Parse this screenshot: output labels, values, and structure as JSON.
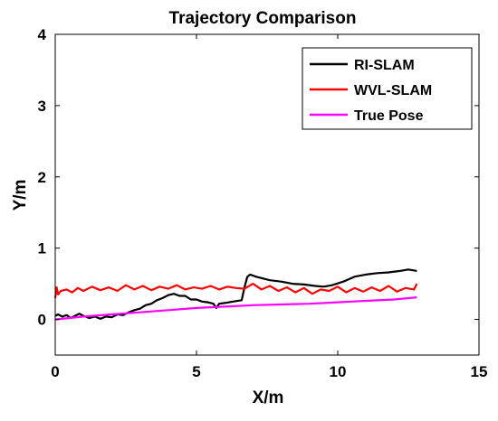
{
  "chart_data": {
    "type": "line",
    "title": "Trajectory Comparison",
    "xlabel": "X/m",
    "ylabel": "Y/m",
    "xlim": [
      0,
      15
    ],
    "ylim": [
      -0.5,
      4
    ],
    "xticks": [
      0,
      5,
      10,
      15
    ],
    "yticks": [
      0,
      1,
      2,
      3,
      4
    ],
    "grid": false,
    "legend_position": "top-right",
    "series": [
      {
        "name": "RI-SLAM",
        "color": "#000000",
        "x": [
          0,
          0.1,
          0.25,
          0.4,
          0.55,
          0.7,
          0.85,
          1.0,
          1.2,
          1.4,
          1.6,
          1.8,
          2.0,
          2.2,
          2.4,
          2.6,
          2.8,
          3.0,
          3.2,
          3.4,
          3.6,
          3.8,
          4.0,
          4.2,
          4.4,
          4.6,
          4.8,
          5.0,
          5.2,
          5.4,
          5.6,
          5.7,
          5.8,
          6.0,
          6.3,
          6.6,
          6.7,
          6.8,
          6.9,
          7.1,
          7.3,
          7.6,
          8.0,
          8.4,
          8.8,
          9.2,
          9.5,
          9.8,
          10.2,
          10.6,
          11.0,
          11.4,
          11.8,
          12.2,
          12.5,
          12.8
        ],
        "y": [
          0.05,
          0.07,
          0.04,
          0.06,
          0.02,
          0.05,
          0.08,
          0.05,
          0.02,
          0.04,
          0.01,
          0.04,
          0.03,
          0.07,
          0.06,
          0.1,
          0.13,
          0.15,
          0.2,
          0.22,
          0.27,
          0.3,
          0.34,
          0.36,
          0.33,
          0.33,
          0.28,
          0.28,
          0.25,
          0.24,
          0.22,
          0.16,
          0.22,
          0.23,
          0.25,
          0.27,
          0.45,
          0.6,
          0.63,
          0.6,
          0.58,
          0.55,
          0.53,
          0.5,
          0.49,
          0.47,
          0.46,
          0.48,
          0.53,
          0.6,
          0.63,
          0.65,
          0.66,
          0.68,
          0.7,
          0.68
        ]
      },
      {
        "name": "WVL-SLAM",
        "color": "#ff0000",
        "x": [
          0,
          0.05,
          0.1,
          0.2,
          0.4,
          0.6,
          0.8,
          1.0,
          1.3,
          1.6,
          1.9,
          2.2,
          2.5,
          2.8,
          3.1,
          3.4,
          3.7,
          4.0,
          4.3,
          4.6,
          4.9,
          5.2,
          5.5,
          5.8,
          6.1,
          6.4,
          6.7,
          7.0,
          7.3,
          7.6,
          7.9,
          8.2,
          8.5,
          8.8,
          9.1,
          9.4,
          9.7,
          10.0,
          10.3,
          10.6,
          10.9,
          11.2,
          11.5,
          11.8,
          12.1,
          12.4,
          12.7,
          12.8
        ],
        "y": [
          0.3,
          0.45,
          0.35,
          0.4,
          0.42,
          0.38,
          0.44,
          0.4,
          0.46,
          0.41,
          0.45,
          0.4,
          0.48,
          0.42,
          0.47,
          0.41,
          0.46,
          0.43,
          0.48,
          0.42,
          0.45,
          0.43,
          0.47,
          0.42,
          0.46,
          0.44,
          0.43,
          0.5,
          0.42,
          0.47,
          0.4,
          0.45,
          0.38,
          0.44,
          0.36,
          0.42,
          0.4,
          0.46,
          0.38,
          0.44,
          0.39,
          0.45,
          0.4,
          0.47,
          0.39,
          0.44,
          0.42,
          0.5
        ]
      },
      {
        "name": "True Pose",
        "color": "#ff00ff",
        "x": [
          0,
          1,
          2,
          3,
          4,
          5,
          6,
          7,
          8,
          9,
          10,
          11,
          12,
          12.8
        ],
        "y": [
          0.0,
          0.04,
          0.07,
          0.1,
          0.13,
          0.16,
          0.18,
          0.2,
          0.21,
          0.22,
          0.24,
          0.26,
          0.28,
          0.31
        ]
      }
    ]
  }
}
